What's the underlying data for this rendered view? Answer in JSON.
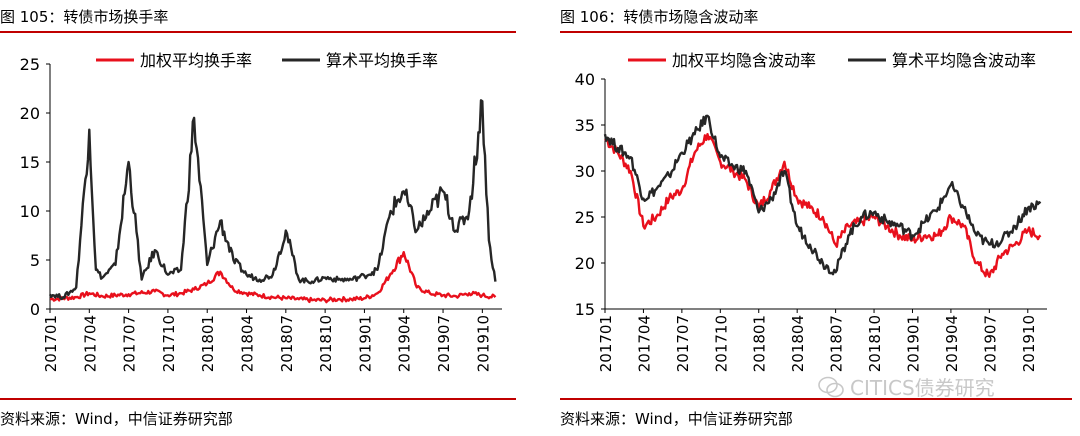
{
  "colors": {
    "red": "#e8101c",
    "black": "#262626",
    "rule": "#c00000",
    "watermark": "#c8c8c8"
  },
  "watermark": {
    "text": "CITICS债券研究",
    "icon": "wechat-icon"
  },
  "chart_data": [
    {
      "type": "line",
      "title": "图 105：转债市场换手率",
      "source": "资料来源：Wind，中信证券研究部",
      "xlabel": "",
      "ylabel": "",
      "ylim": [
        0,
        25
      ],
      "yticks": [
        0,
        5,
        10,
        15,
        20,
        25
      ],
      "xticks": [
        "201701",
        "201704",
        "201707",
        "201710",
        "201801",
        "201804",
        "201807",
        "201810",
        "201901",
        "201904",
        "201907",
        "201910"
      ],
      "legend": "top",
      "series": [
        {
          "name": "加权平均换手率",
          "color": "#e8101c",
          "x": [
            "201701",
            "201703",
            "201704",
            "201705",
            "201707",
            "201709",
            "201710",
            "201711",
            "201712",
            "201801",
            "201802",
            "201803",
            "201804",
            "201805",
            "201806",
            "201807",
            "201808",
            "201809",
            "201810",
            "201811",
            "201812",
            "201901",
            "201902",
            "201903",
            "201904",
            "201905",
            "201906",
            "201907",
            "201908",
            "201909",
            "201910",
            "201911"
          ],
          "values": [
            1.0,
            1.2,
            1.6,
            1.3,
            1.5,
            1.8,
            1.4,
            1.6,
            2.0,
            2.6,
            3.8,
            2.0,
            1.6,
            1.4,
            1.2,
            1.1,
            1.0,
            0.9,
            0.9,
            1.0,
            1.0,
            1.1,
            1.6,
            3.6,
            5.8,
            2.2,
            1.6,
            1.4,
            1.3,
            1.6,
            1.4,
            1.2
          ]
        },
        {
          "name": "算术平均换手率",
          "color": "#262626",
          "x": [
            "201701",
            "201702",
            "201703",
            "201704",
            "201704b",
            "201705",
            "201706",
            "201707",
            "201708",
            "201709",
            "201710",
            "201711",
            "201712",
            "201801",
            "201802",
            "201803",
            "201804",
            "201805",
            "201806",
            "201807",
            "201808",
            "201809",
            "201810",
            "201811",
            "201812",
            "201901",
            "201902",
            "201903",
            "201904",
            "201905",
            "201906",
            "201907",
            "201908",
            "201909",
            "201910",
            "201910b",
            "201911"
          ],
          "values": [
            1.5,
            1.2,
            2.2,
            18.3,
            4.0,
            3.2,
            4.5,
            15.0,
            3.0,
            6.0,
            3.5,
            4.0,
            19.5,
            4.5,
            9.0,
            5.0,
            3.5,
            3.0,
            3.5,
            8.0,
            3.0,
            2.8,
            3.2,
            3.0,
            3.0,
            3.4,
            4.0,
            10.0,
            12.0,
            8.0,
            10.0,
            12.0,
            8.0,
            10.0,
            21.2,
            7.0,
            2.8
          ]
        }
      ]
    },
    {
      "type": "line",
      "title": "图 106：转债市场隐含波动率",
      "source": "资料来源：Wind，中信证券研究部",
      "xlabel": "",
      "ylabel": "",
      "ylim": [
        15,
        40
      ],
      "yticks": [
        15,
        20,
        25,
        30,
        35,
        40
      ],
      "xticks": [
        "201701",
        "201704",
        "201707",
        "201710",
        "201801",
        "201804",
        "201807",
        "201810",
        "201901",
        "201904",
        "201907",
        "201910"
      ],
      "legend": "top",
      "series": [
        {
          "name": "加权平均隐含波动率",
          "color": "#e8101c",
          "x": [
            "201701",
            "201702",
            "201703",
            "201704",
            "201705",
            "201706",
            "201707",
            "201708",
            "201709",
            "201710",
            "201711",
            "201712",
            "201801",
            "201802",
            "201803",
            "201804",
            "201805",
            "201806",
            "201807",
            "201808",
            "201809",
            "201810",
            "201811",
            "201812",
            "201901",
            "201902",
            "201903",
            "201904",
            "201905",
            "201906",
            "201907",
            "201908",
            "201909",
            "201910",
            "201911"
          ],
          "values": [
            33.5,
            32.0,
            30.0,
            24.0,
            25.0,
            27.0,
            28.0,
            32.0,
            34.0,
            31.0,
            30.0,
            29.0,
            26.0,
            28.0,
            31.0,
            27.0,
            26.0,
            25.0,
            22.0,
            24.0,
            24.5,
            25.0,
            24.0,
            23.0,
            22.5,
            23.0,
            23.0,
            25.0,
            24.0,
            20.0,
            18.5,
            21.0,
            22.0,
            23.5,
            23.0
          ]
        },
        {
          "name": "算术平均隐含波动率",
          "color": "#262626",
          "x": [
            "201701",
            "201702",
            "201703",
            "201704",
            "201705",
            "201706",
            "201707",
            "201708",
            "201709",
            "201710",
            "201711",
            "201712",
            "201801",
            "201802",
            "201803",
            "201804",
            "201805",
            "201806",
            "201807",
            "201808",
            "201809",
            "201810",
            "201811",
            "201812",
            "201901",
            "201902",
            "201903",
            "201904",
            "201905",
            "201906",
            "201907",
            "201908",
            "201909",
            "201910",
            "201911"
          ],
          "values": [
            34.0,
            32.5,
            31.5,
            27.0,
            28.0,
            29.5,
            32.0,
            34.0,
            36.0,
            31.5,
            30.5,
            30.0,
            25.5,
            27.0,
            30.0,
            24.0,
            22.0,
            20.0,
            19.0,
            23.0,
            25.0,
            25.5,
            24.5,
            24.0,
            23.0,
            24.5,
            26.0,
            28.5,
            26.0,
            23.0,
            22.0,
            22.5,
            24.0,
            26.0,
            26.5
          ]
        }
      ]
    }
  ]
}
